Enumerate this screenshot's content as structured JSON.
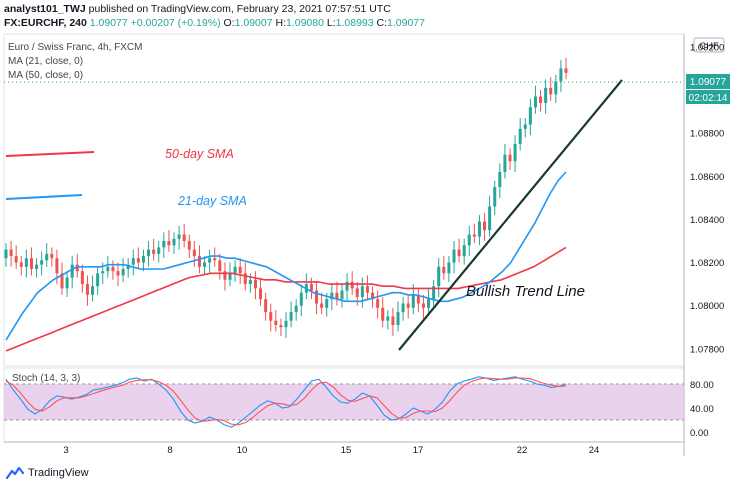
{
  "header": {
    "user": "analyst101_TWJ",
    "published_text": "published on TradingView.com, February 23, 2021 07:57:51 UTC",
    "symbol": "FX:EURCHF, 240",
    "ohlc": {
      "last": "1.09077",
      "change": "+0.00207 (+0.19%)",
      "o_label": "O:",
      "open": "1.09007",
      "h_label": "H:",
      "high": "1.09080",
      "l_label": "L:",
      "low": "1.08993",
      "c_label": "C:",
      "close": "1.09077"
    }
  },
  "legend": {
    "title": "Euro / Swiss Franc, 4h, FXCM",
    "ma21": "MA (21, close, 0)",
    "ma50": "MA (50, close, 0)"
  },
  "price_axis": {
    "currency": "CHF",
    "current_price": "1.09077",
    "countdown": "02:02:14"
  },
  "annotations": {
    "sma50": "50-day SMA",
    "sma21": "21-day SMA",
    "trend": "Bullish Trend Line"
  },
  "stoch": {
    "label": "Stoch (14, 3, 3)",
    "ticks": [
      "80.00",
      "40.00",
      "0.00"
    ]
  },
  "footer": {
    "brand": "TradingView"
  },
  "colors": {
    "up": "#26a69a",
    "down": "#ef5350",
    "ma21": "#2196f3",
    "ma50": "#f23645",
    "stoch_k": "#2196f3",
    "stoch_d": "#ff5252",
    "stoch_band": "#e1bee7",
    "trend_line": "#1b3a2e"
  },
  "chart_data": {
    "type": "candlestick",
    "title": "Euro / Swiss Franc, 4h, FXCM",
    "y_range": [
      1.0772,
      1.0926
    ],
    "y_ticks": [
      "1.09200",
      "1.08800",
      "1.08600",
      "1.08400",
      "1.08200",
      "1.08000",
      "1.07800"
    ],
    "x_ticks": [
      "3",
      "8",
      "10",
      "15",
      "17",
      "22",
      "24"
    ],
    "close": [
      1.0826,
      1.0823,
      1.082,
      1.0818,
      1.0822,
      1.0817,
      1.0819,
      1.0821,
      1.0824,
      1.0822,
      1.0815,
      1.0808,
      1.0813,
      1.0819,
      1.0816,
      1.081,
      1.0805,
      1.0809,
      1.0815,
      1.0816,
      1.0818,
      1.0816,
      1.0814,
      1.0817,
      1.0819,
      1.0822,
      1.082,
      1.0823,
      1.0826,
      1.0824,
      1.0827,
      1.083,
      1.0828,
      1.0831,
      1.0833,
      1.083,
      1.0826,
      1.0823,
      1.0818,
      1.082,
      1.0822,
      1.0821,
      1.0816,
      1.0812,
      1.0815,
      1.0818,
      1.0815,
      1.081,
      1.0812,
      1.0808,
      1.0803,
      1.0797,
      1.0793,
      1.0791,
      1.079,
      1.0793,
      1.0797,
      1.08,
      1.0806,
      1.081,
      1.0807,
      1.0801,
      1.0799,
      1.0803,
      1.0806,
      1.0803,
      1.0807,
      1.0811,
      1.0808,
      1.0804,
      1.0809,
      1.0806,
      1.0803,
      1.0799,
      1.0793,
      1.0795,
      1.0791,
      1.0797,
      1.0801,
      1.0799,
      1.0805,
      1.0801,
      1.0799,
      1.0803,
      1.0809,
      1.0818,
      1.0815,
      1.082,
      1.0826,
      1.0823,
      1.0828,
      1.0833,
      1.0832,
      1.0839,
      1.0835,
      1.0846,
      1.0855,
      1.0862,
      1.087,
      1.0867,
      1.0875,
      1.0882,
      1.0884,
      1.0892,
      1.0897,
      1.0894,
      1.0901,
      1.0898,
      1.0904,
      1.091,
      1.0908
    ],
    "ma21": [
      1.0784,
      1.079,
      1.0796,
      1.0801,
      1.0806,
      1.0809,
      1.0812,
      1.0814,
      1.0816,
      1.0818,
      1.0818,
      1.0818,
      1.0818,
      1.0819,
      1.0819,
      1.0819,
      1.0818,
      1.0817,
      1.0817,
      1.0817,
      1.0817,
      1.0818,
      1.0819,
      1.082,
      1.0821,
      1.0822,
      1.0823,
      1.0823,
      1.0822,
      1.0822,
      1.0821,
      1.082,
      1.0819,
      1.0818,
      1.0816,
      1.0814,
      1.0812,
      1.081,
      1.0808,
      1.0806,
      1.0805,
      1.0804,
      1.0803,
      1.0802,
      1.0802,
      1.0802,
      1.0803,
      1.0804,
      1.0805,
      1.0806,
      1.0806,
      1.0805,
      1.0805,
      1.0804,
      1.0803,
      1.0802,
      1.0802,
      1.0803,
      1.0804,
      1.0806,
      1.0808,
      1.081,
      1.0813,
      1.0816,
      1.082,
      1.0826,
      1.0832,
      1.0838,
      1.0845,
      1.0852,
      1.0858,
      1.0862
    ],
    "ma50": [
      1.0779,
      1.0781,
      1.0783,
      1.0785,
      1.0787,
      1.0789,
      1.0791,
      1.0793,
      1.0795,
      1.0797,
      1.0799,
      1.0801,
      1.0803,
      1.0805,
      1.0807,
      1.0809,
      1.0811,
      1.0813,
      1.0814,
      1.0815,
      1.0815,
      1.0815,
      1.0814,
      1.0813,
      1.0812,
      1.0812,
      1.0811,
      1.0811,
      1.0811,
      1.0811,
      1.081,
      1.081,
      1.081,
      1.081,
      1.081,
      1.0809,
      1.0809,
      1.0808,
      1.0808,
      1.0808,
      1.0808,
      1.0808,
      1.0808,
      1.0809,
      1.081,
      1.0811,
      1.0812,
      1.0814,
      1.0816,
      1.0818,
      1.0821,
      1.0824,
      1.0827
    ],
    "stoch_k": [
      88,
      70,
      55,
      38,
      30,
      38,
      52,
      60,
      58,
      55,
      58,
      62,
      70,
      72,
      75,
      78,
      82,
      88,
      90,
      85,
      88,
      80,
      70,
      55,
      35,
      20,
      15,
      18,
      25,
      20,
      12,
      8,
      15,
      25,
      35,
      45,
      52,
      48,
      40,
      42,
      55,
      70,
      85,
      88,
      75,
      60,
      50,
      48,
      55,
      65,
      60,
      45,
      28,
      20,
      22,
      30,
      40,
      35,
      30,
      38,
      50,
      68,
      80,
      85,
      88,
      92,
      90,
      86,
      88,
      90,
      92,
      88,
      85,
      80,
      78,
      74,
      76,
      80
    ],
    "stoch_d": [
      85,
      78,
      65,
      50,
      38,
      35,
      42,
      52,
      57,
      57,
      57,
      60,
      64,
      68,
      72,
      75,
      78,
      83,
      86,
      87,
      87,
      84,
      78,
      68,
      53,
      37,
      23,
      18,
      19,
      21,
      19,
      13,
      12,
      16,
      25,
      35,
      44,
      48,
      47,
      44,
      46,
      56,
      70,
      81,
      83,
      75,
      62,
      53,
      51,
      56,
      60,
      57,
      44,
      31,
      23,
      24,
      31,
      35,
      35,
      34,
      40,
      52,
      66,
      78,
      84,
      88,
      90,
      89,
      88,
      88,
      90,
      90,
      89,
      85,
      81,
      78,
      76,
      77
    ]
  }
}
